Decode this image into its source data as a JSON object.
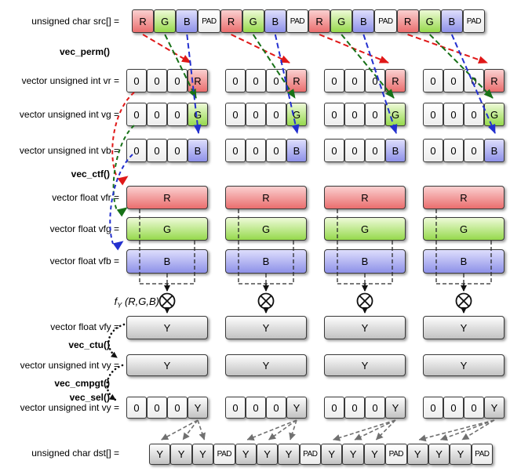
{
  "group_count": 4,
  "labels": {
    "src": "unsigned char src[] =",
    "vec_perm": "vec_perm()",
    "vr": "vector unsigned int vr =",
    "vg": "vector unsigned int vg =",
    "vb": "vector unsigned int vb =",
    "vec_ctf": "vec_ctf()",
    "vfr": "vector float vfr =",
    "vfg": "vector float vfg =",
    "vfb": "vector float vfb =",
    "fy_f": "f",
    "fy_sub": "Y",
    "fy_args": "(R,G,B)",
    "vfy": "vector float vfy =",
    "vec_ctu": "vec_ctu()",
    "vy": "vector unsigned int vy =",
    "vec_cmpgt": "vec_cmpgt()",
    "vec_sel": "vec_sel()",
    "vy_sel": "vector unsigned int vy =",
    "dst": "unsigned char dst[] ="
  },
  "src_row": {
    "repeat": 4,
    "pattern": [
      {
        "t": "R",
        "c": "r"
      },
      {
        "t": "G",
        "c": "g"
      },
      {
        "t": "B",
        "c": "b"
      },
      {
        "t": "PAD",
        "c": "pad"
      }
    ]
  },
  "vector_rows": {
    "vr": {
      "cells": [
        {
          "t": "0",
          "c": "zero"
        },
        {
          "t": "0",
          "c": "zero"
        },
        {
          "t": "0",
          "c": "zero"
        },
        {
          "t": "R",
          "c": "r"
        }
      ]
    },
    "vg": {
      "cells": [
        {
          "t": "0",
          "c": "zero"
        },
        {
          "t": "0",
          "c": "zero"
        },
        {
          "t": "0",
          "c": "zero"
        },
        {
          "t": "G",
          "c": "g"
        }
      ]
    },
    "vb": {
      "cells": [
        {
          "t": "0",
          "c": "zero"
        },
        {
          "t": "0",
          "c": "zero"
        },
        {
          "t": "0",
          "c": "zero"
        },
        {
          "t": "B",
          "c": "b"
        }
      ]
    },
    "vy_sel": {
      "cells": [
        {
          "t": "0",
          "c": "zero"
        },
        {
          "t": "0",
          "c": "zero"
        },
        {
          "t": "0",
          "c": "zero"
        },
        {
          "t": "Y",
          "c": "y"
        }
      ]
    }
  },
  "float_bars": {
    "vfr": {
      "t": "R",
      "c": "r"
    },
    "vfg": {
      "t": "G",
      "c": "g"
    },
    "vfb": {
      "t": "B",
      "c": "b"
    },
    "vfy": {
      "t": "Y",
      "c": "y"
    },
    "vy": {
      "t": "Y",
      "c": "y"
    }
  },
  "dst_row": {
    "repeat": 4,
    "pattern": [
      {
        "t": "Y",
        "c": "y"
      },
      {
        "t": "Y",
        "c": "y"
      },
      {
        "t": "Y",
        "c": "y"
      },
      {
        "t": "PAD",
        "c": "pad"
      }
    ]
  },
  "icons": {
    "multiply_operator": "⊗"
  },
  "colors": {
    "arrow_red": "#e01818",
    "arrow_green": "#177117",
    "arrow_blue": "#2330cf",
    "arrow_gray": "#707070",
    "arrow_black": "#111111",
    "bracket": "#2a2a2a",
    "cell_red": "#ea6e6e",
    "cell_green": "#96d94c",
    "cell_blue": "#8e91e8",
    "cell_gray": "#c2c2c2"
  }
}
